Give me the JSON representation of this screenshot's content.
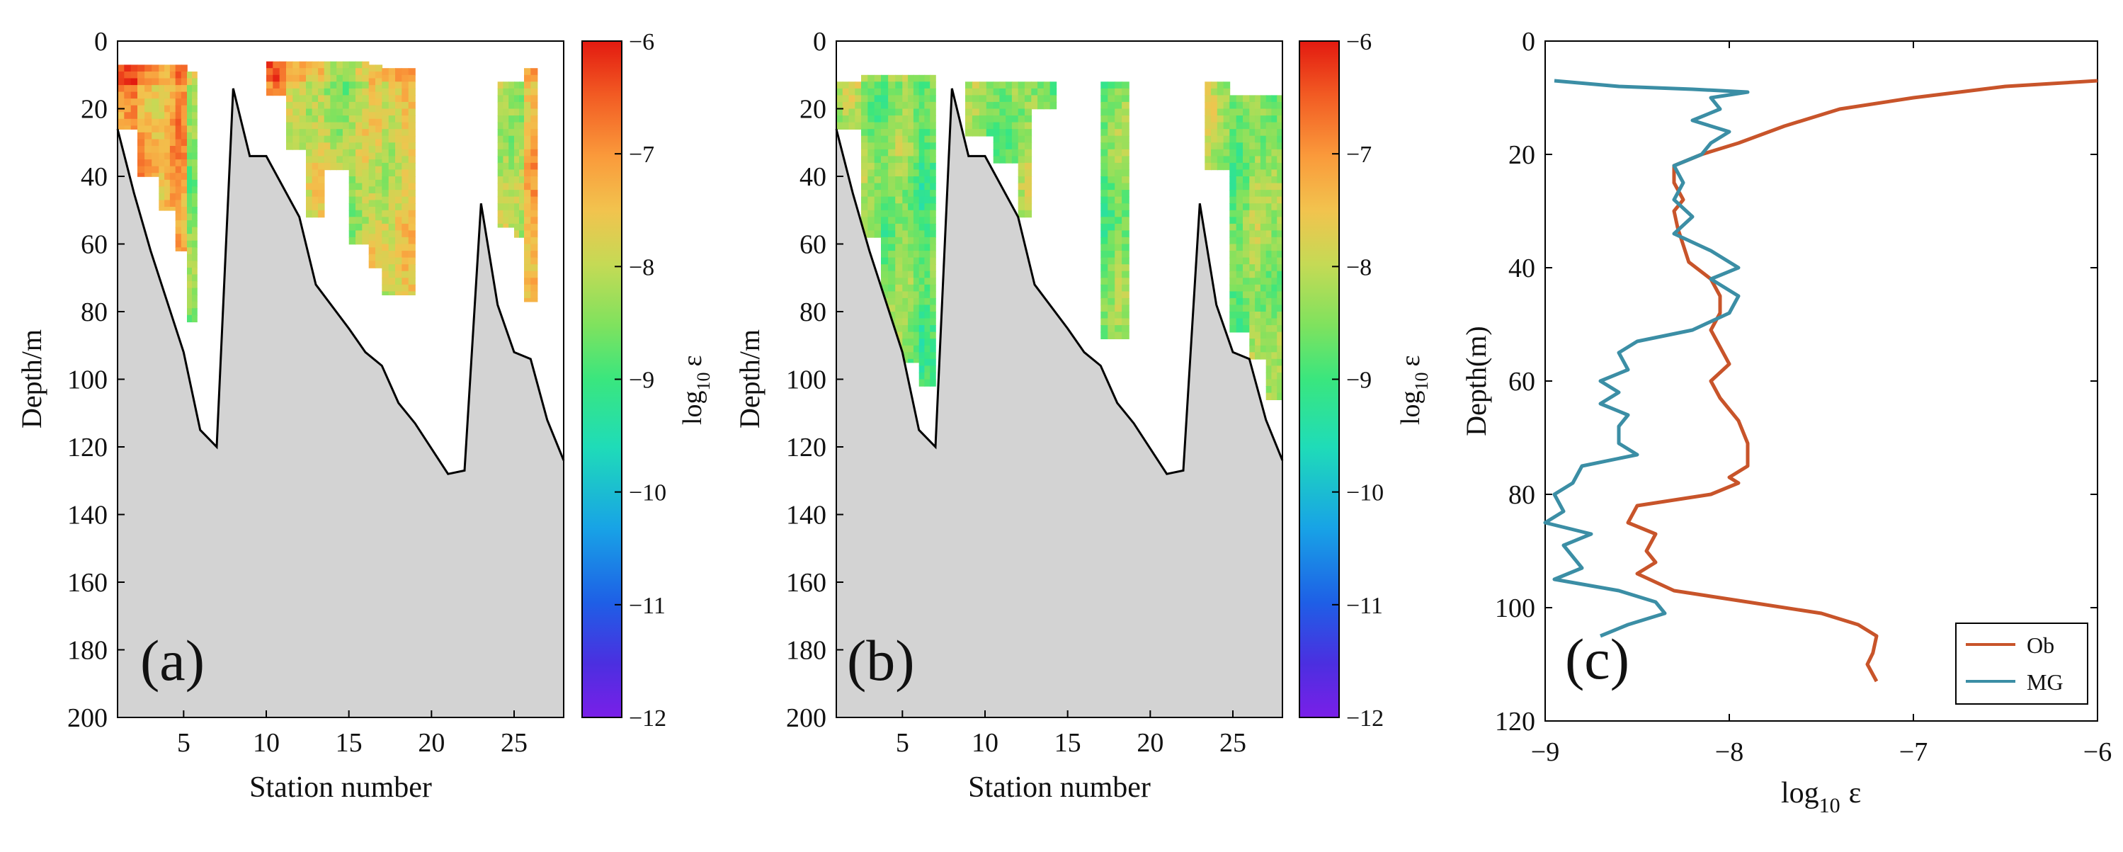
{
  "figure": {
    "panels": [
      "(a)",
      "(b)",
      "(c)"
    ]
  },
  "chart_data": [
    {
      "type": "heatmap",
      "panel_label": "(a)",
      "xlabel": "Station number",
      "ylabel": "Depth/m",
      "xlim": [
        1,
        28
      ],
      "ylim": [
        200,
        0
      ],
      "x_ticks": [
        "5",
        "10",
        "15",
        "20",
        "25"
      ],
      "x_tick_values": [
        5,
        10,
        15,
        20,
        25
      ],
      "y_ticks": [
        "0",
        "20",
        "40",
        "60",
        "80",
        "100",
        "120",
        "140",
        "160",
        "180",
        "200"
      ],
      "y_tick_values": [
        0,
        20,
        40,
        60,
        80,
        100,
        120,
        140,
        160,
        180,
        200
      ],
      "colorbar_label_base": "log",
      "colorbar_label_sub": "10",
      "colorbar_label_sym": "ε",
      "colorbar_range": [
        -12,
        -6
      ],
      "colorbar_ticks": [
        "−6",
        "−7",
        "−8",
        "−9",
        "−10",
        "−11",
        "−12"
      ],
      "colorbar_tick_values": [
        -6,
        -7,
        -8,
        -9,
        -10,
        -11,
        -12
      ],
      "bathymetry": [
        [
          1,
          26
        ],
        [
          2,
          45
        ],
        [
          3,
          62
        ],
        [
          5,
          92
        ],
        [
          6,
          115
        ],
        [
          7,
          120
        ],
        [
          8,
          14
        ],
        [
          9,
          34
        ],
        [
          10,
          34
        ],
        [
          12,
          52
        ],
        [
          13,
          72
        ],
        [
          15,
          85
        ],
        [
          16,
          92
        ],
        [
          17,
          96
        ],
        [
          18,
          107
        ],
        [
          19,
          113
        ],
        [
          21,
          128
        ],
        [
          22,
          127
        ],
        [
          23,
          48
        ],
        [
          24,
          78
        ],
        [
          25,
          92
        ],
        [
          26,
          94
        ],
        [
          27,
          112
        ],
        [
          28,
          124
        ]
      ],
      "data_columns": [
        {
          "x0": 1.0,
          "x1": 2.2,
          "top": 7,
          "bottom": 26,
          "mean_log_eps": -7.0
        },
        {
          "x0": 2.2,
          "x1": 3.5,
          "top": 7,
          "bottom": 40,
          "mean_log_eps": -7.2
        },
        {
          "x0": 3.5,
          "x1": 4.5,
          "top": 7,
          "bottom": 50,
          "mean_log_eps": -7.4
        },
        {
          "x0": 4.5,
          "x1": 5.2,
          "top": 7,
          "bottom": 62,
          "mean_log_eps": -7.2
        },
        {
          "x0": 5.2,
          "x1": 5.8,
          "top": 9,
          "bottom": 83,
          "mean_log_eps": -8.2
        },
        {
          "x0": 10.0,
          "x1": 11.2,
          "top": 6,
          "bottom": 16,
          "mean_log_eps": -7.3
        },
        {
          "x0": 11.2,
          "x1": 12.4,
          "top": 6,
          "bottom": 32,
          "mean_log_eps": -7.6
        },
        {
          "x0": 12.4,
          "x1": 13.5,
          "top": 6,
          "bottom": 52,
          "mean_log_eps": -8.0
        },
        {
          "x0": 13.5,
          "x1": 15.0,
          "top": 6,
          "bottom": 38,
          "mean_log_eps": -8.2
        },
        {
          "x0": 15.0,
          "x1": 16.2,
          "top": 6,
          "bottom": 60,
          "mean_log_eps": -8.1
        },
        {
          "x0": 16.2,
          "x1": 17.0,
          "top": 7,
          "bottom": 67,
          "mean_log_eps": -8.0
        },
        {
          "x0": 17.0,
          "x1": 19.0,
          "top": 8,
          "bottom": 75,
          "mean_log_eps": -7.8
        },
        {
          "x0": 24.0,
          "x1": 25.0,
          "top": 12,
          "bottom": 55,
          "mean_log_eps": -8.3
        },
        {
          "x0": 25.0,
          "x1": 25.6,
          "top": 12,
          "bottom": 58,
          "mean_log_eps": -8.0
        },
        {
          "x0": 25.6,
          "x1": 26.4,
          "top": 8,
          "bottom": 77,
          "mean_log_eps": -7.4
        }
      ]
    },
    {
      "type": "heatmap",
      "panel_label": "(b)",
      "xlabel": "Station number",
      "ylabel": "Depth/m",
      "xlim": [
        1,
        28
      ],
      "ylim": [
        200,
        0
      ],
      "x_ticks": [
        "5",
        "10",
        "15",
        "20",
        "25"
      ],
      "x_tick_values": [
        5,
        10,
        15,
        20,
        25
      ],
      "y_ticks": [
        "0",
        "20",
        "40",
        "60",
        "80",
        "100",
        "120",
        "140",
        "160",
        "180",
        "200"
      ],
      "y_tick_values": [
        0,
        20,
        40,
        60,
        80,
        100,
        120,
        140,
        160,
        180,
        200
      ],
      "colorbar_label_base": "log",
      "colorbar_label_sub": "10",
      "colorbar_label_sym": "ε",
      "colorbar_range": [
        -12,
        -6
      ],
      "colorbar_ticks": [
        "−6",
        "−7",
        "−8",
        "−9",
        "−10",
        "−11",
        "−12"
      ],
      "colorbar_tick_values": [
        -6,
        -7,
        -8,
        -9,
        -10,
        -11,
        -12
      ],
      "bathymetry": [
        [
          1,
          26
        ],
        [
          2,
          45
        ],
        [
          3,
          62
        ],
        [
          5,
          92
        ],
        [
          6,
          115
        ],
        [
          7,
          120
        ],
        [
          8,
          14
        ],
        [
          9,
          34
        ],
        [
          10,
          34
        ],
        [
          12,
          52
        ],
        [
          13,
          72
        ],
        [
          15,
          85
        ],
        [
          16,
          92
        ],
        [
          17,
          96
        ],
        [
          18,
          107
        ],
        [
          19,
          113
        ],
        [
          21,
          128
        ],
        [
          22,
          127
        ],
        [
          23,
          48
        ],
        [
          24,
          78
        ],
        [
          25,
          92
        ],
        [
          26,
          94
        ],
        [
          27,
          112
        ],
        [
          28,
          124
        ]
      ],
      "data_columns": [
        {
          "x0": 1.0,
          "x1": 2.5,
          "top": 12,
          "bottom": 26,
          "mean_log_eps": -8.0
        },
        {
          "x0": 2.5,
          "x1": 3.7,
          "top": 10,
          "bottom": 58,
          "mean_log_eps": -8.4
        },
        {
          "x0": 3.7,
          "x1": 5.0,
          "top": 10,
          "bottom": 94,
          "mean_log_eps": -8.5
        },
        {
          "x0": 5.0,
          "x1": 6.0,
          "top": 10,
          "bottom": 95,
          "mean_log_eps": -8.6
        },
        {
          "x0": 6.0,
          "x1": 7.0,
          "top": 10,
          "bottom": 102,
          "mean_log_eps": -8.7
        },
        {
          "x0": 8.8,
          "x1": 10.5,
          "top": 12,
          "bottom": 28,
          "mean_log_eps": -8.5
        },
        {
          "x0": 10.5,
          "x1": 12.0,
          "top": 12,
          "bottom": 36,
          "mean_log_eps": -8.4
        },
        {
          "x0": 12.0,
          "x1": 12.8,
          "top": 12,
          "bottom": 52,
          "mean_log_eps": -8.3
        },
        {
          "x0": 12.8,
          "x1": 14.3,
          "top": 12,
          "bottom": 20,
          "mean_log_eps": -8.3
        },
        {
          "x0": 17.0,
          "x1": 18.7,
          "top": 12,
          "bottom": 88,
          "mean_log_eps": -8.6
        },
        {
          "x0": 23.3,
          "x1": 24.8,
          "top": 12,
          "bottom": 38,
          "mean_log_eps": -8.2
        },
        {
          "x0": 24.8,
          "x1": 26.0,
          "top": 16,
          "bottom": 86,
          "mean_log_eps": -8.5
        },
        {
          "x0": 26.0,
          "x1": 27.0,
          "top": 16,
          "bottom": 94,
          "mean_log_eps": -8.4
        },
        {
          "x0": 27.0,
          "x1": 28.0,
          "top": 16,
          "bottom": 106,
          "mean_log_eps": -8.2
        }
      ]
    },
    {
      "type": "line",
      "panel_label": "(c)",
      "xlabel_base": "log",
      "xlabel_sub": "10",
      "xlabel_sym": "ε",
      "ylabel": "Depth(m)",
      "xlim": [
        -9,
        -6
      ],
      "ylim": [
        120,
        0
      ],
      "x_ticks": [
        "−9",
        "−8",
        "−7",
        "−6"
      ],
      "x_tick_values": [
        -9,
        -8,
        -7,
        -6
      ],
      "y_ticks": [
        "0",
        "20",
        "40",
        "60",
        "80",
        "100",
        "120"
      ],
      "y_tick_values": [
        0,
        20,
        40,
        60,
        80,
        100,
        120
      ],
      "legend_position": "bottom-right",
      "series": [
        {
          "name": "Ob",
          "color": "#c8542a",
          "points": [
            [
              -6.0,
              7
            ],
            [
              -6.5,
              8
            ],
            [
              -7.0,
              10
            ],
            [
              -7.4,
              12
            ],
            [
              -7.7,
              15
            ],
            [
              -7.95,
              18
            ],
            [
              -8.15,
              20
            ],
            [
              -8.3,
              22
            ],
            [
              -8.3,
              25
            ],
            [
              -8.25,
              28
            ],
            [
              -8.3,
              30
            ],
            [
              -8.28,
              33
            ],
            [
              -8.25,
              36
            ],
            [
              -8.22,
              39
            ],
            [
              -8.1,
              42
            ],
            [
              -8.05,
              45
            ],
            [
              -8.05,
              48
            ],
            [
              -8.1,
              51
            ],
            [
              -8.05,
              54
            ],
            [
              -8.0,
              57
            ],
            [
              -8.1,
              60
            ],
            [
              -8.05,
              63
            ],
            [
              -7.95,
              67
            ],
            [
              -7.9,
              71
            ],
            [
              -7.9,
              75
            ],
            [
              -8.0,
              77
            ],
            [
              -7.95,
              78
            ],
            [
              -8.1,
              80
            ],
            [
              -8.5,
              82
            ],
            [
              -8.55,
              85
            ],
            [
              -8.4,
              87
            ],
            [
              -8.45,
              90
            ],
            [
              -8.4,
              92
            ],
            [
              -8.5,
              94
            ],
            [
              -8.3,
              97
            ],
            [
              -7.9,
              99
            ],
            [
              -7.5,
              101
            ],
            [
              -7.3,
              103
            ],
            [
              -7.2,
              105
            ],
            [
              -7.22,
              108
            ],
            [
              -7.25,
              110
            ],
            [
              -7.2,
              113
            ]
          ]
        },
        {
          "name": "MG",
          "color": "#3b8ea5",
          "points": [
            [
              -8.95,
              7
            ],
            [
              -8.6,
              8
            ],
            [
              -8.2,
              8.5
            ],
            [
              -7.9,
              9
            ],
            [
              -8.1,
              10
            ],
            [
              -8.05,
              12
            ],
            [
              -8.2,
              14
            ],
            [
              -8.0,
              16
            ],
            [
              -8.1,
              18
            ],
            [
              -8.15,
              20
            ],
            [
              -8.3,
              22
            ],
            [
              -8.25,
              25
            ],
            [
              -8.3,
              28
            ],
            [
              -8.2,
              31
            ],
            [
              -8.3,
              34
            ],
            [
              -8.1,
              37
            ],
            [
              -7.95,
              40
            ],
            [
              -8.1,
              42
            ],
            [
              -7.95,
              45
            ],
            [
              -8.0,
              48
            ],
            [
              -8.2,
              51
            ],
            [
              -8.5,
              53
            ],
            [
              -8.6,
              55
            ],
            [
              -8.55,
              58
            ],
            [
              -8.7,
              60
            ],
            [
              -8.6,
              62
            ],
            [
              -8.7,
              64
            ],
            [
              -8.55,
              66
            ],
            [
              -8.6,
              68
            ],
            [
              -8.6,
              71
            ],
            [
              -8.5,
              73
            ],
            [
              -8.8,
              75
            ],
            [
              -8.85,
              78
            ],
            [
              -8.95,
              80
            ],
            [
              -8.9,
              83
            ],
            [
              -9.0,
              85
            ],
            [
              -8.75,
              87
            ],
            [
              -8.9,
              89
            ],
            [
              -8.85,
              91
            ],
            [
              -8.8,
              93
            ],
            [
              -8.95,
              95
            ],
            [
              -8.6,
              97
            ],
            [
              -8.4,
              99
            ],
            [
              -8.35,
              101
            ],
            [
              -8.55,
              103
            ],
            [
              -8.7,
              105
            ]
          ]
        }
      ]
    }
  ]
}
